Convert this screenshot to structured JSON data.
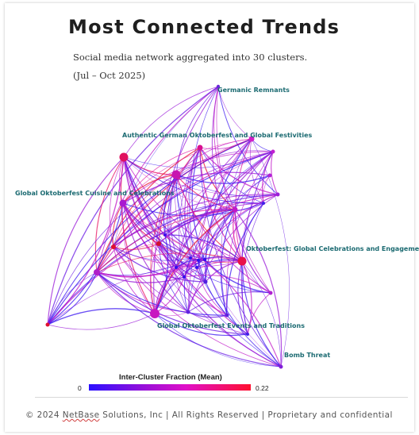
{
  "header": {
    "title": "Most Connected Trends",
    "subtitle": "Social media network aggregated into 30 clusters.",
    "date_range": "(Jul – Oct 2025)"
  },
  "legend": {
    "title": "Inter-Cluster Fraction (Mean)",
    "min_label": "0",
    "max_label": "0.22",
    "colors": [
      "#2a10ff",
      "#9a10d8",
      "#e010c8",
      "#ff1030"
    ]
  },
  "footer": {
    "prefix": "© 2024 ",
    "brand": "NetBase",
    "suffix": " Solutions, Inc | All Rights Reserved | Proprietary and confidential"
  },
  "network": {
    "labels": [
      "Germanic Remnants",
      "Authentic German Oktoberfest and Global Festivities",
      "Global Oktoberfest Cuisine and Celebrations",
      "Oktoberfest: Global Celebrations and Engagement",
      "Global Oktoberfest Events and Traditions",
      "Bomb Threat"
    ]
  }
}
